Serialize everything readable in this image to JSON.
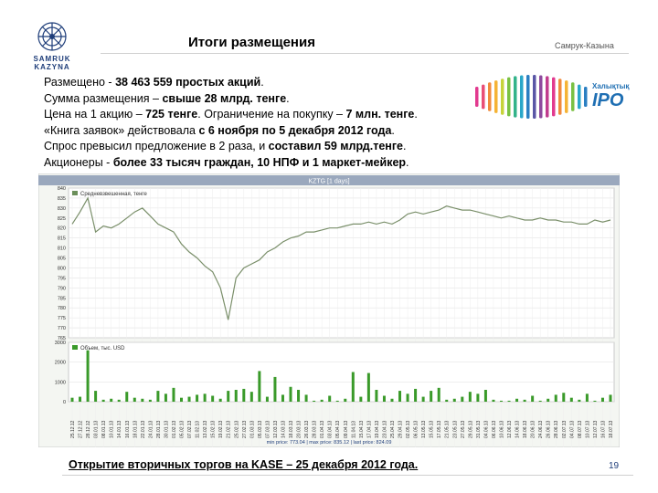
{
  "slide": {
    "title": "Итоги размещения",
    "brand": "Самрук-Казына",
    "logo_text": "SAMRUK KAZYNA",
    "ipo_label_top": "Халықтық",
    "ipo_label_main": "IPO",
    "lines": [
      {
        "pre": "Размещено - ",
        "bold": "38 463 559 простых акций",
        "post": "."
      },
      {
        "pre": "Сумма размещения – ",
        "bold": "свыше 28 млрд. тенге",
        "post": "."
      },
      {
        "pre": "Цена на 1 акцию – ",
        "bold": "725 тенге",
        "post": ". Ограничение на покупку – ",
        "bold2": "7 млн. тенге",
        "post2": "."
      },
      {
        "pre": "«Книга заявок» действовала ",
        "bold": "с 6 ноября по 5 декабря 2012 года",
        "post": "."
      },
      {
        "pre": "Спрос превысил предложение в 2 раза, и ",
        "bold": "составил 59 млрд.тенге",
        "post": "."
      },
      {
        "pre": "Акционеры - ",
        "bold": "более 33 тысяч граждан, 10 НПФ и 1 маркет-мейкер",
        "post": "."
      }
    ],
    "footer": "Открытие вторичных торгов на KASE – 25 декабря 2012 года.",
    "page_number": "19"
  },
  "chart_data": {
    "type": "line",
    "title": "KZTG [1 days]",
    "price_legend": "Средневзвешенная, тенге",
    "volume_legend": "Объем, тыс. USD",
    "price_ylim": [
      765,
      840
    ],
    "price_ticks": [
      "840",
      "835",
      "830",
      "825",
      "820",
      "815",
      "810",
      "805",
      "800",
      "795",
      "790",
      "785",
      "780",
      "775",
      "770",
      "765"
    ],
    "volume_ylim": [
      0,
      3000
    ],
    "volume_ticks": [
      "3000",
      "2000",
      "1000",
      "0"
    ],
    "dates": [
      "25.12.12",
      "27.12.12",
      "28.12.12",
      "03.01.13",
      "08.01.13",
      "10.01.13",
      "14.01.13",
      "16.01.13",
      "18.01.13",
      "22.01.13",
      "24.01.13",
      "28.01.13",
      "30.01.13",
      "01.02.13",
      "05.02.13",
      "07.02.13",
      "11.02.13",
      "13.02.13",
      "15.02.13",
      "19.02.13",
      "21.02.13",
      "25.02.13",
      "27.02.13",
      "01.03.13",
      "05.03.13",
      "07.03.13",
      "12.03.13",
      "14.03.13",
      "18.03.13",
      "20.03.13",
      "26.03.13",
      "28.03.13",
      "01.04.13",
      "03.04.13",
      "05.04.13",
      "09.04.13",
      "11.04.13",
      "15.04.13",
      "17.04.13",
      "19.04.13",
      "23.04.13",
      "25.04.13",
      "29.04.13",
      "02.05.13",
      "06.05.13",
      "13.05.13",
      "15.05.13",
      "17.05.13",
      "21.05.13",
      "23.05.13",
      "27.05.13",
      "29.05.13",
      "31.05.13",
      "04.06.13",
      "06.06.13",
      "10.06.13",
      "12.06.13",
      "14.06.13",
      "18.06.13",
      "20.06.13",
      "24.06.13",
      "26.06.13",
      "28.06.13",
      "02.07.13",
      "04.07.13",
      "08.07.13",
      "10.07.13",
      "12.07.13",
      "16.07.13",
      "18.07.13"
    ],
    "price": [
      822,
      828,
      835,
      818,
      821,
      820,
      822,
      825,
      828,
      830,
      826,
      822,
      820,
      818,
      812,
      808,
      805,
      801,
      798,
      790,
      774,
      795,
      800,
      802,
      804,
      808,
      810,
      813,
      815,
      816,
      818,
      818,
      819,
      820,
      820,
      821,
      822,
      822,
      823,
      822,
      823,
      822,
      824,
      827,
      828,
      827,
      828,
      829,
      831,
      830,
      829,
      829,
      828,
      827,
      826,
      825,
      826,
      825,
      824,
      824,
      825,
      824,
      824,
      823,
      823,
      822,
      822,
      824,
      823,
      824
    ],
    "volume": [
      200,
      250,
      2600,
      550,
      100,
      150,
      100,
      500,
      200,
      150,
      100,
      550,
      400,
      700,
      200,
      250,
      350,
      400,
      300,
      150,
      550,
      600,
      650,
      500,
      1550,
      250,
      1250,
      350,
      750,
      600,
      350,
      50,
      100,
      300,
      50,
      150,
      1500,
      250,
      1450,
      600,
      300,
      150,
      550,
      400,
      650,
      250,
      550,
      700,
      100,
      150,
      250,
      500,
      400,
      600,
      100,
      50,
      50,
      150,
      100,
      300,
      50,
      150,
      350,
      450,
      200,
      100,
      400,
      50,
      200,
      350
    ],
    "footer_stats": "min price: 773.04  |  max price: 835.12  |  last price: 824.09"
  }
}
